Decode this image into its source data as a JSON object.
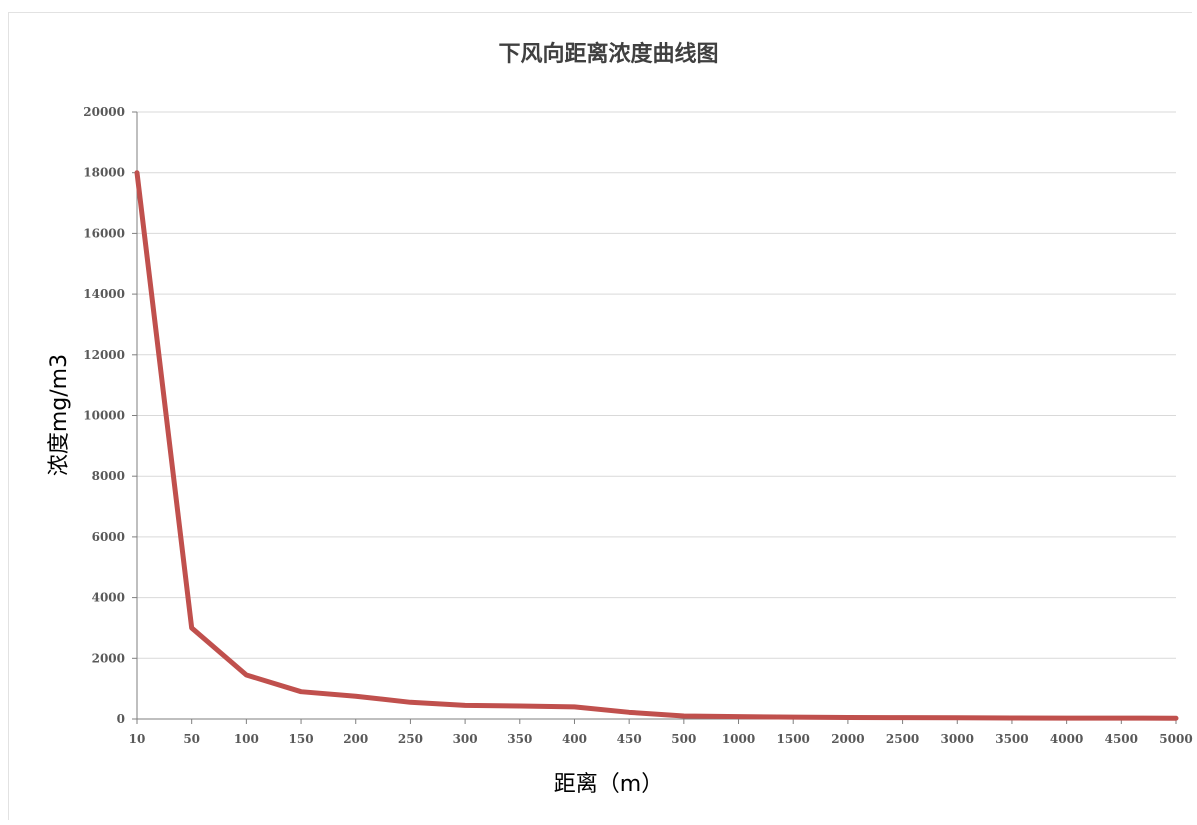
{
  "chart_data": {
    "type": "line",
    "title": "下风向距离浓度曲线图",
    "xlabel": "距离（m）",
    "ylabel": "浓度mg/m3",
    "categories": [
      "10",
      "50",
      "100",
      "150",
      "200",
      "250",
      "300",
      "350",
      "400",
      "450",
      "500",
      "1000",
      "1500",
      "2000",
      "2500",
      "3000",
      "3500",
      "4000",
      "4500",
      "5000"
    ],
    "series": [
      {
        "values": [
          18000,
          3000,
          1450,
          900,
          750,
          550,
          450,
          430,
          400,
          220,
          100,
          80,
          60,
          50,
          45,
          40,
          35,
          30,
          30,
          25
        ]
      }
    ],
    "ylim": [
      0,
      20000
    ],
    "yticks": [
      "0",
      "2000",
      "4000",
      "6000",
      "8000",
      "10000",
      "12000",
      "14000",
      "16000",
      "18000",
      "20000"
    ],
    "grid": true,
    "legend": "none",
    "colors": {
      "line": "#c0504d",
      "grid": "#d9d9d9",
      "axis": "#7f7f7f"
    }
  }
}
